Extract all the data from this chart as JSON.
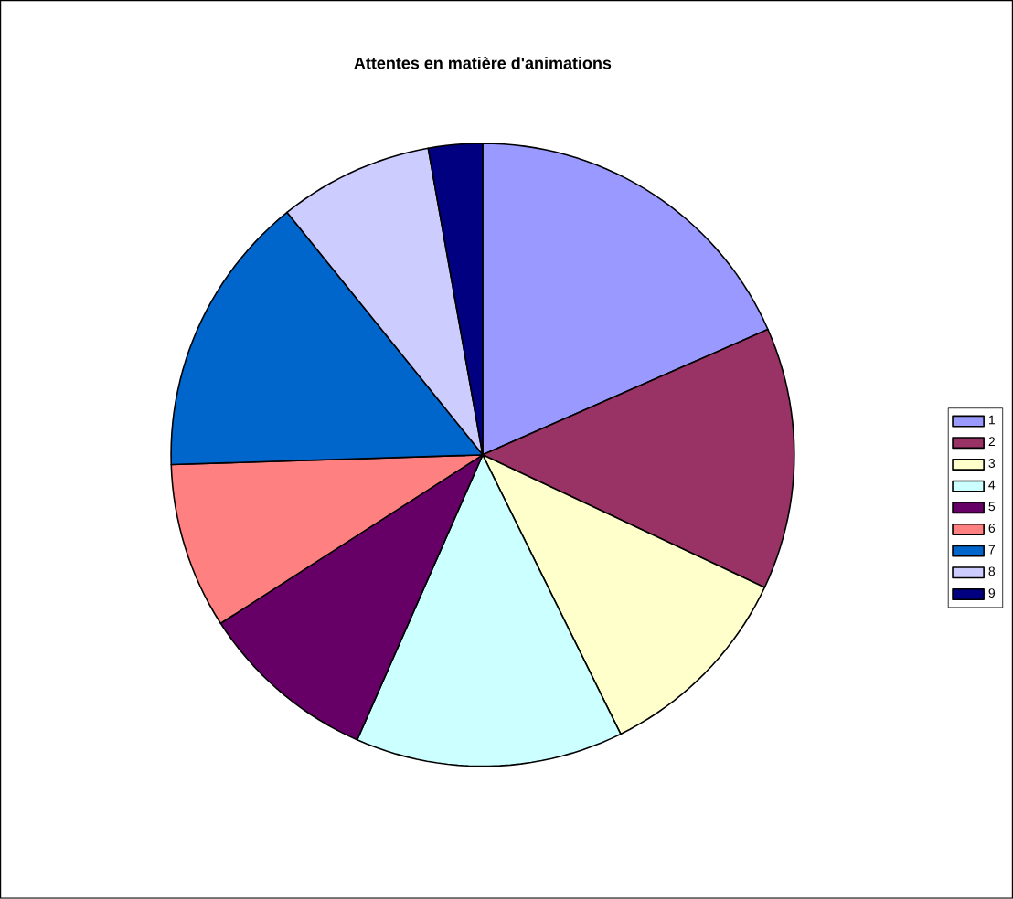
{
  "chart_data": {
    "type": "pie",
    "title": "Attentes en matière d'animations",
    "categories": [
      "1",
      "2",
      "3",
      "4",
      "5",
      "6",
      "7",
      "8",
      "9"
    ],
    "values": [
      18.4,
      13.6,
      10.7,
      13.9,
      9.3,
      8.6,
      14.7,
      8.0,
      2.8
    ],
    "colors": [
      "#9999ff",
      "#993366",
      "#ffffcc",
      "#ccffff",
      "#660066",
      "#ff8080",
      "#0066cc",
      "#ccccff",
      "#000080"
    ],
    "legend": "right"
  }
}
